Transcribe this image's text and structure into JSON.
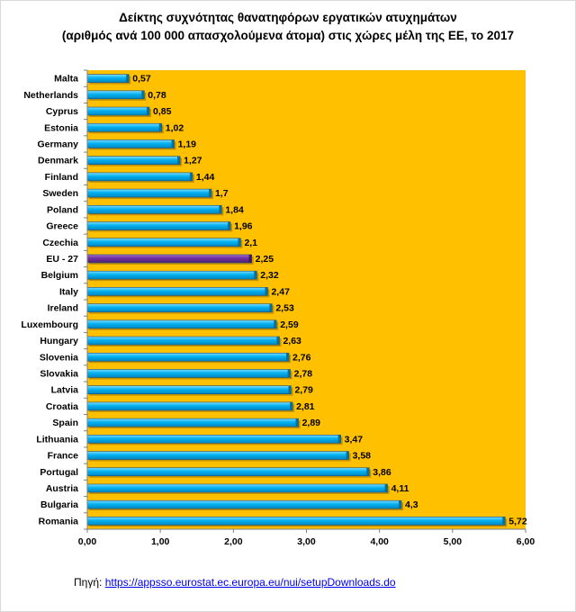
{
  "chart_data": {
    "type": "bar",
    "orientation": "horizontal",
    "title_line1": "Δείκτης συχνότητας θανατηφόρων εργατικών ατυχημάτων",
    "title_line2": "(αριθμός ανά 100 000 απασχολούμενα άτομα) στις χώρες μέλη της ΕΕ, το 2017",
    "categories": [
      "Malta",
      "Netherlands",
      "Cyprus",
      "Estonia",
      "Germany",
      "Denmark",
      "Finland",
      "Sweden",
      "Poland",
      "Greece",
      "Czechia",
      "EU - 27",
      "Belgium",
      "Italy",
      "Ireland",
      "Luxembourg",
      "Hungary",
      "Slovenia",
      "Slovakia",
      "Latvia",
      "Croatia",
      "Spain",
      "Lithuania",
      "France",
      "Portugal",
      "Austria",
      "Bulgaria",
      "Romania"
    ],
    "values": [
      0.57,
      0.78,
      0.85,
      1.02,
      1.19,
      1.27,
      1.44,
      1.7,
      1.84,
      1.96,
      2.1,
      2.25,
      2.32,
      2.47,
      2.53,
      2.59,
      2.63,
      2.76,
      2.78,
      2.79,
      2.81,
      2.89,
      3.47,
      3.58,
      3.86,
      4.11,
      4.3,
      5.72
    ],
    "value_labels": [
      "0,57",
      "0,78",
      "0,85",
      "1,02",
      "1,19",
      "1,27",
      "1,44",
      "1,7",
      "1,84",
      "1,96",
      "2,1",
      "2,25",
      "2,32",
      "2,47",
      "2,53",
      "2,59",
      "2,63",
      "2,76",
      "2,78",
      "2,79",
      "2,81",
      "2,89",
      "3,47",
      "3,58",
      "3,86",
      "4,11",
      "4,3",
      "5,72"
    ],
    "highlight_category": "EU - 27",
    "xlim": [
      0,
      6
    ],
    "xticks": [
      0,
      1,
      2,
      3,
      4,
      5,
      6
    ],
    "xtick_labels": [
      "0,00",
      "1,00",
      "2,00",
      "3,00",
      "4,00",
      "5,00",
      "6,00"
    ],
    "colors": {
      "plot_background": "#ffc000",
      "bar": "#00b0f0",
      "bar_highlight": "#7030a0",
      "bar_edge": "#1f4e79"
    }
  },
  "source": {
    "prefix": "Πηγή: ",
    "link_text": "https://appsso.eurostat.ec.europa.eu/nui/setupDownloads.do"
  }
}
